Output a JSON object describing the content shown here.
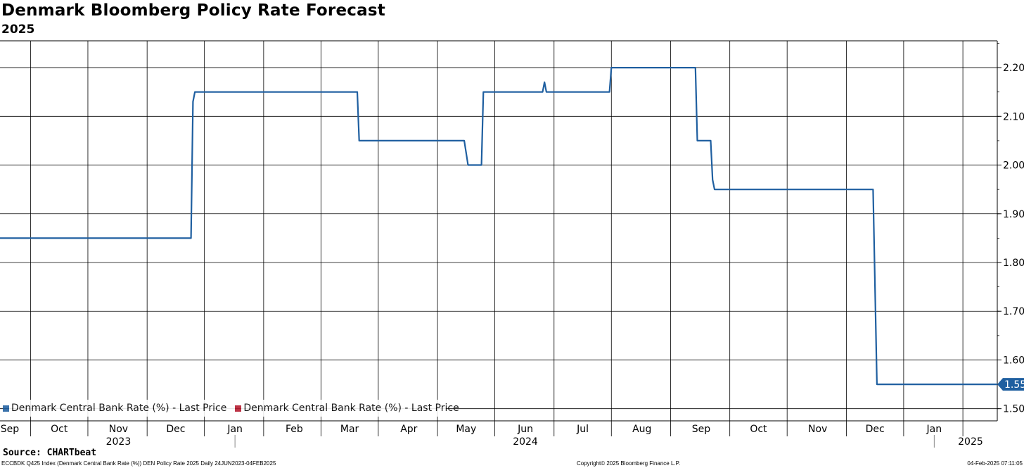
{
  "header": {
    "title": "Denmark Bloomberg Policy Rate Forecast",
    "subtitle": "2025"
  },
  "legend": [
    {
      "label": "Denmark Central Bank Rate (%) - Last Price",
      "color": "#1f5fa0"
    },
    {
      "label": "Denmark Central Bank Rate (%) - Last Price",
      "color": "#b5182c"
    }
  ],
  "footer": {
    "source": "Source: CHARTbeat",
    "left": "ECCBDK Q425 Index (Denmark Central Bank Rate (%)) DEN Policy Rate 2025  Daily 24JUN2023-04FEB2025",
    "middle": "Copyright© 2025 Bloomberg Finance L.P.",
    "right": "04-Feb-2025 07:11:05"
  },
  "chart_data": {
    "type": "line",
    "title": "Denmark Bloomberg Policy Rate Forecast",
    "subtitle": "2025",
    "line_color": "#1f5fa0",
    "last_value_label": "1.55",
    "x_range": [
      "2023-08-31",
      "2025-02-03"
    ],
    "ylim": [
      1.475,
      2.255
    ],
    "yticks": [
      1.5,
      1.6,
      1.7,
      1.8,
      1.9,
      2.0,
      2.1,
      2.2
    ],
    "ytick_labels": [
      "1.50",
      "1.60",
      "1.70",
      "1.80",
      "1.90",
      "2.00",
      "2.10",
      "2.20"
    ],
    "grid": true,
    "month_ticks": [
      {
        "label": "Sep",
        "date": "2023-09-01"
      },
      {
        "label": "Oct",
        "date": "2023-10-01"
      },
      {
        "label": "Nov",
        "date": "2023-11-01"
      },
      {
        "label": "Dec",
        "date": "2023-12-01"
      },
      {
        "label": "Jan",
        "date": "2024-01-01"
      },
      {
        "label": "Feb",
        "date": "2024-02-01"
      },
      {
        "label": "Mar",
        "date": "2024-03-01"
      },
      {
        "label": "Apr",
        "date": "2024-04-01"
      },
      {
        "label": "May",
        "date": "2024-05-01"
      },
      {
        "label": "Jun",
        "date": "2024-06-01"
      },
      {
        "label": "Jul",
        "date": "2024-07-01"
      },
      {
        "label": "Aug",
        "date": "2024-08-01"
      },
      {
        "label": "Sep",
        "date": "2024-09-01"
      },
      {
        "label": "Oct",
        "date": "2024-10-01"
      },
      {
        "label": "Nov",
        "date": "2024-11-01"
      },
      {
        "label": "Dec",
        "date": "2024-12-01"
      },
      {
        "label": "Jan",
        "date": "2025-01-01"
      }
    ],
    "year_labels": [
      {
        "label": "2023",
        "date": "2023-11-01"
      },
      {
        "label": "2024",
        "date": "2024-06-01"
      },
      {
        "label": "2025",
        "date": "2025-01-20"
      }
    ],
    "year_separators": [
      "2024-01-01",
      "2025-01-01"
    ],
    "series": [
      {
        "name": "Denmark Central Bank Rate (%) - Last Price",
        "points": [
          [
            "2023-08-31",
            1.85
          ],
          [
            "2023-12-09",
            1.85
          ],
          [
            "2023-12-10",
            2.13
          ],
          [
            "2023-12-11",
            2.15
          ],
          [
            "2024-03-05",
            2.15
          ],
          [
            "2024-03-06",
            2.05
          ],
          [
            "2024-04-30",
            2.05
          ],
          [
            "2024-05-02",
            2.0
          ],
          [
            "2024-05-09",
            2.0
          ],
          [
            "2024-05-10",
            2.15
          ],
          [
            "2024-06-10",
            2.15
          ],
          [
            "2024-06-11",
            2.17
          ],
          [
            "2024-06-12",
            2.15
          ],
          [
            "2024-07-15",
            2.15
          ],
          [
            "2024-07-16",
            2.2
          ],
          [
            "2024-08-29",
            2.2
          ],
          [
            "2024-08-30",
            2.05
          ],
          [
            "2024-09-06",
            2.05
          ],
          [
            "2024-09-07",
            1.97
          ],
          [
            "2024-09-08",
            1.95
          ],
          [
            "2024-11-30",
            1.95
          ],
          [
            "2024-12-02",
            1.55
          ],
          [
            "2025-02-03",
            1.55
          ]
        ]
      }
    ]
  }
}
